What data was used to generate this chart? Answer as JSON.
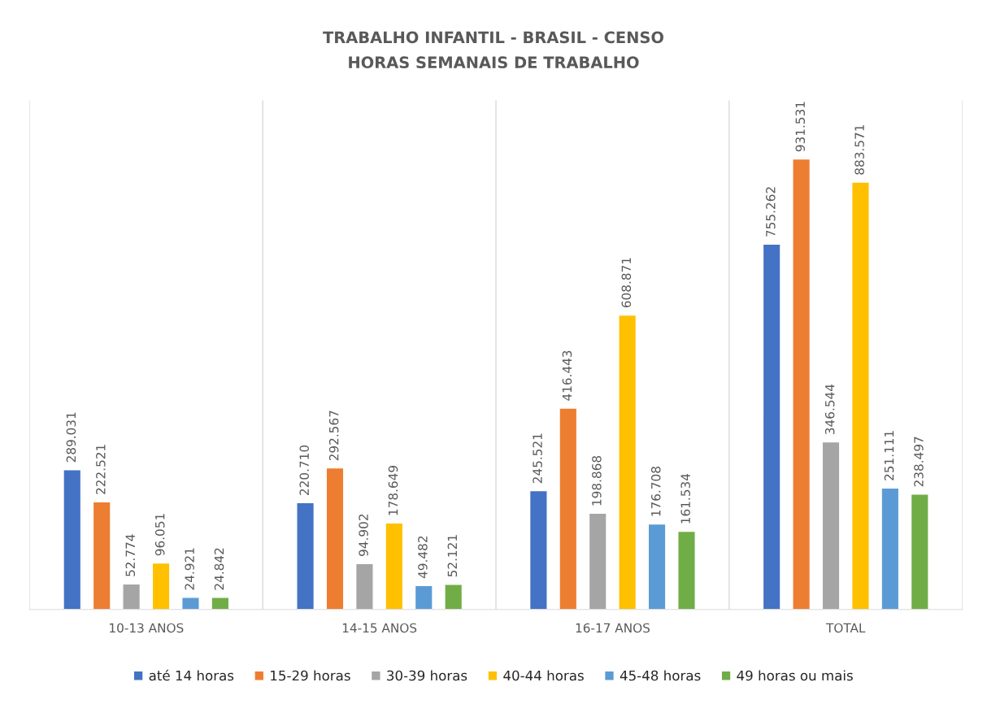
{
  "chart_data": {
    "type": "bar",
    "title": "TRABALHO INFANTIL - BRASIL - CENSO",
    "subtitle": "HORAS SEMANAIS DE TRABALHO",
    "categories": [
      "10-13 ANOS",
      "14-15 ANOS",
      "16-17 ANOS",
      "TOTAL"
    ],
    "series": [
      {
        "name": "até 14 horas",
        "color": "#4472c4",
        "values": [
          289031,
          220710,
          245521,
          755262
        ],
        "value_labels": [
          "289.031",
          "220.710",
          "245.521",
          "755.262"
        ]
      },
      {
        "name": "15-29 horas",
        "color": "#ed7d31",
        "values": [
          222521,
          292567,
          416443,
          931531
        ],
        "value_labels": [
          "222.521",
          "292.567",
          "416.443",
          "931.531"
        ]
      },
      {
        "name": "30-39 horas",
        "color": "#a5a5a5",
        "values": [
          52774,
          94902,
          198868,
          346544
        ],
        "value_labels": [
          "52.774",
          "94.902",
          "198.868",
          "346.544"
        ]
      },
      {
        "name": "40-44 horas",
        "color": "#ffc000",
        "values": [
          96051,
          178649,
          608871,
          883571
        ],
        "value_labels": [
          "96.051",
          "178.649",
          "608.871",
          "883.571"
        ]
      },
      {
        "name": "45-48 horas",
        "color": "#5b9bd5",
        "values": [
          24921,
          49482,
          176708,
          251111
        ],
        "value_labels": [
          "24.921",
          "49.482",
          "176.708",
          "251.111"
        ]
      },
      {
        "name": "49 horas ou mais",
        "color": "#70ad47",
        "values": [
          24842,
          52121,
          161534,
          238497
        ],
        "value_labels": [
          "24.842",
          "52.121",
          "161.534",
          "238.497"
        ]
      }
    ],
    "grid": "x",
    "legend": "bottom"
  }
}
